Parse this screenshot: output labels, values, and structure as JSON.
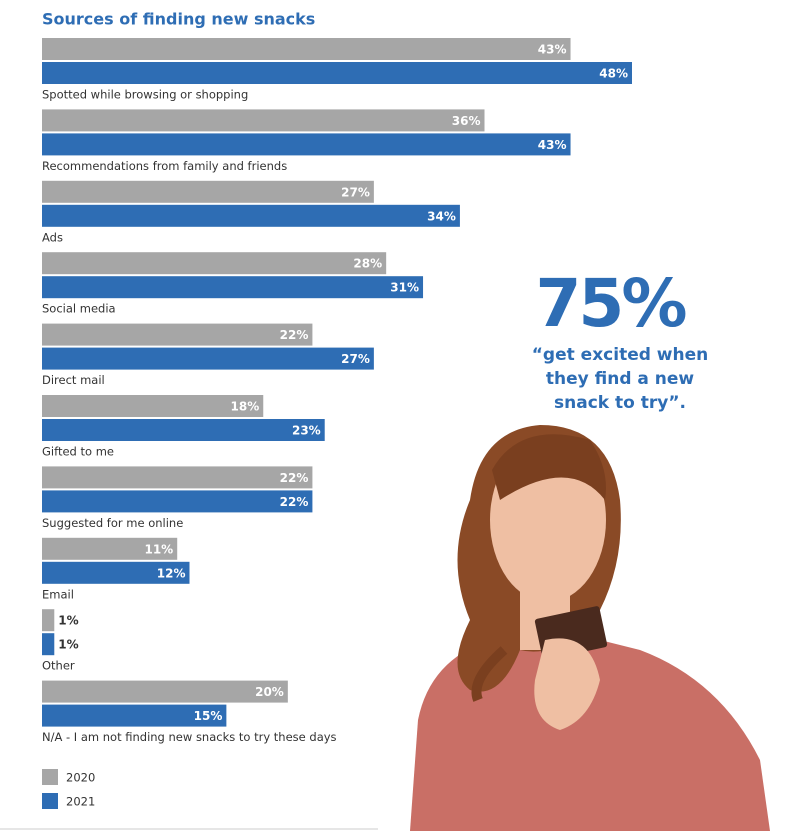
{
  "chart_data": {
    "type": "bar",
    "orientation": "horizontal",
    "title": "Sources of finding new snacks",
    "categories": [
      "Spotted while browsing or shopping",
      "Recommendations from family and friends",
      "Ads",
      "Social media",
      "Direct mail",
      "Gifted to me",
      "Suggested for me online",
      "Email",
      "Other",
      "N/A - I am not finding new snacks to try these days"
    ],
    "series": [
      {
        "name": "2020",
        "color": "#a6a6a6",
        "values": [
          43,
          36,
          27,
          28,
          22,
          18,
          22,
          11,
          1,
          20
        ],
        "value_labels": [
          "43%",
          "36%",
          "27%",
          "28%",
          "22%",
          "18%",
          "22%",
          "11%",
          "1%",
          "20%"
        ]
      },
      {
        "name": "2021",
        "color": "#2e6db4",
        "values": [
          48,
          43,
          34,
          31,
          27,
          23,
          22,
          12,
          1,
          15
        ],
        "value_labels": [
          "48%",
          "43%",
          "34%",
          "31%",
          "27%",
          "23%",
          "22%",
          "12%",
          "1%",
          "15%"
        ]
      }
    ],
    "callout": {
      "stat": "75%",
      "lines": [
        "“get excited when",
        "they find a new",
        "snack to try”."
      ]
    }
  }
}
